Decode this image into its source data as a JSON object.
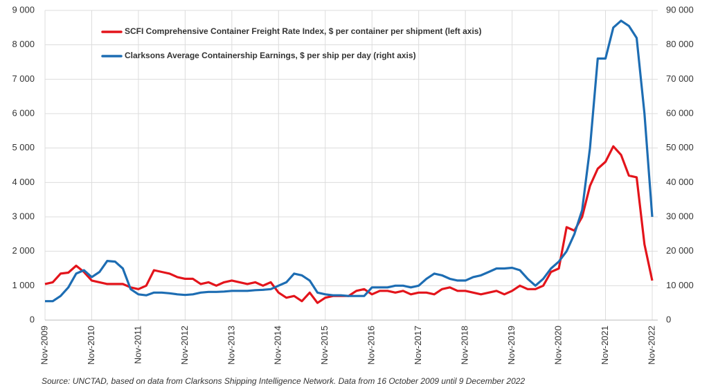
{
  "chart_data": {
    "type": "line",
    "categories": [
      "Nov-2009",
      null,
      null,
      null,
      null,
      null,
      "Nov-2010",
      null,
      null,
      null,
      null,
      null,
      "Nov-2011",
      null,
      null,
      null,
      null,
      null,
      "Nov-2012",
      null,
      null,
      null,
      null,
      null,
      "Nov-2013",
      null,
      null,
      null,
      null,
      null,
      "Nov-2014",
      null,
      null,
      null,
      null,
      null,
      "Nov-2015",
      null,
      null,
      null,
      null,
      null,
      "Nov-2016",
      null,
      null,
      null,
      null,
      null,
      "Nov-2017",
      null,
      null,
      null,
      null,
      null,
      "Nov-2018",
      null,
      null,
      null,
      null,
      null,
      "Nov-2019",
      null,
      null,
      null,
      null,
      null,
      "Nov-2020",
      null,
      null,
      null,
      null,
      null,
      "Nov-2021",
      null,
      null,
      null,
      null,
      null,
      "Nov-2022"
    ],
    "series": [
      {
        "name": "SCFI Comprehensive Container Freight Rate Index, $ per container per shipment (left axis)",
        "color": "#e3141b",
        "values": [
          1050,
          1100,
          1350,
          1380,
          1580,
          1400,
          1150,
          1100,
          1050,
          1050,
          1050,
          950,
          900,
          1000,
          1450,
          1400,
          1350,
          1250,
          1200,
          1200,
          1050,
          1100,
          1000,
          1100,
          1150,
          1100,
          1050,
          1100,
          1000,
          1100,
          800,
          650,
          700,
          550,
          800,
          500,
          650,
          700,
          700,
          700,
          850,
          900,
          750,
          850,
          850,
          800,
          850,
          750,
          800,
          800,
          750,
          900,
          950,
          850,
          850,
          800,
          750,
          800,
          850,
          750,
          850,
          1000,
          900,
          900,
          1000,
          1400,
          1500,
          2700,
          2600,
          3000,
          3900,
          4400,
          4600,
          5050,
          4800,
          4200,
          4150,
          2200,
          1150
        ]
      },
      {
        "name": "Clarksons Average Containership Earnings, $ per ship per day (right axis)",
        "color": "#1d6db3",
        "axis": "y2",
        "values": [
          5500,
          5500,
          7000,
          9500,
          13500,
          14500,
          12500,
          14000,
          17200,
          17000,
          15000,
          9000,
          7500,
          7200,
          8000,
          8000,
          7800,
          7500,
          7300,
          7500,
          8000,
          8200,
          8200,
          8300,
          8500,
          8500,
          8500,
          8700,
          8800,
          9000,
          10000,
          11000,
          13500,
          13000,
          11500,
          8000,
          7500,
          7200,
          7200,
          7000,
          7000,
          7000,
          9500,
          9500,
          9500,
          10000,
          10000,
          9500,
          10000,
          12000,
          13500,
          13000,
          12000,
          11500,
          11500,
          12500,
          13000,
          14000,
          15000,
          15000,
          15200,
          14500,
          12000,
          10000,
          12000,
          15000,
          17000,
          20000,
          25000,
          32000,
          50000,
          76000,
          76000,
          85000,
          87000,
          85500,
          82000,
          60000,
          30000
        ]
      }
    ],
    "ylim": [
      0,
      9000
    ],
    "yticks": [
      0,
      {
        "value": 1000,
        "label": "1 000"
      },
      {
        "value": 2000,
        "label": "2 000"
      },
      {
        "value": 3000,
        "label": "3 000"
      },
      {
        "value": 4000,
        "label": "4 000"
      },
      {
        "value": 5000,
        "label": "5 000"
      },
      {
        "value": 6000,
        "label": "6 000"
      },
      {
        "value": 7000,
        "label": "7 000"
      },
      {
        "value": 8000,
        "label": "8 000"
      },
      {
        "value": 9000,
        "label": "9 000"
      }
    ],
    "y2lim": [
      0,
      90000
    ],
    "y2ticks": [
      0,
      {
        "value": 10000,
        "label": "10 000"
      },
      {
        "value": 20000,
        "label": "20 000"
      },
      {
        "value": 30000,
        "label": "30 000"
      },
      {
        "value": 40000,
        "label": "40 000"
      },
      {
        "value": 50000,
        "label": "50 000"
      },
      {
        "value": 60000,
        "label": "60 000"
      },
      {
        "value": 70000,
        "label": "70 000"
      },
      {
        "value": 80000,
        "label": "80 000"
      },
      {
        "value": 90000,
        "label": "90 000"
      }
    ],
    "grid": true,
    "source": "Source: UNCTAD, based on data from Clarksons Shipping Intelligence Network. Data from 16 October 2009 until 9 December 2022"
  }
}
